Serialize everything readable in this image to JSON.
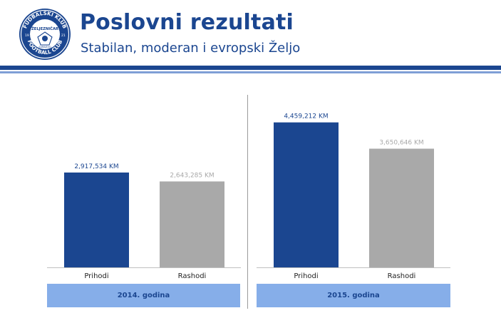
{
  "header": {
    "title": "Poslovni rezultati",
    "subtitle": "Stabilan, moderan i evropski Željo",
    "logo": {
      "top_text": "FUDBALSKI KLUB",
      "bottom_text": "FOOTBALL CLUB",
      "center_text": "ŽELJEZNIČAR",
      "center_sub": "SARAJEVO",
      "year_left": "19",
      "year_right": "21"
    }
  },
  "colors": {
    "brand": "#1b4690",
    "income_bar": "#1b4690",
    "expense_bar": "#a9a9a9",
    "year_band": "#86aee9"
  },
  "chart_data": [
    {
      "type": "bar",
      "categories": [
        "Prihodi",
        "Rashodi"
      ],
      "values": [
        2917534,
        2643285
      ],
      "value_labels": [
        "2,917,534 KM",
        "2,643,285 KM"
      ],
      "group_label": "2014. godina",
      "ylim": [
        0,
        5000000
      ],
      "grid": false
    },
    {
      "type": "bar",
      "categories": [
        "Prihodi",
        "Rashodi"
      ],
      "values": [
        4459212,
        3650646
      ],
      "value_labels": [
        "4,459,212 KM",
        "3,650,646 KM"
      ],
      "group_label": "2015. godina",
      "ylim": [
        0,
        5000000
      ],
      "grid": false
    }
  ]
}
